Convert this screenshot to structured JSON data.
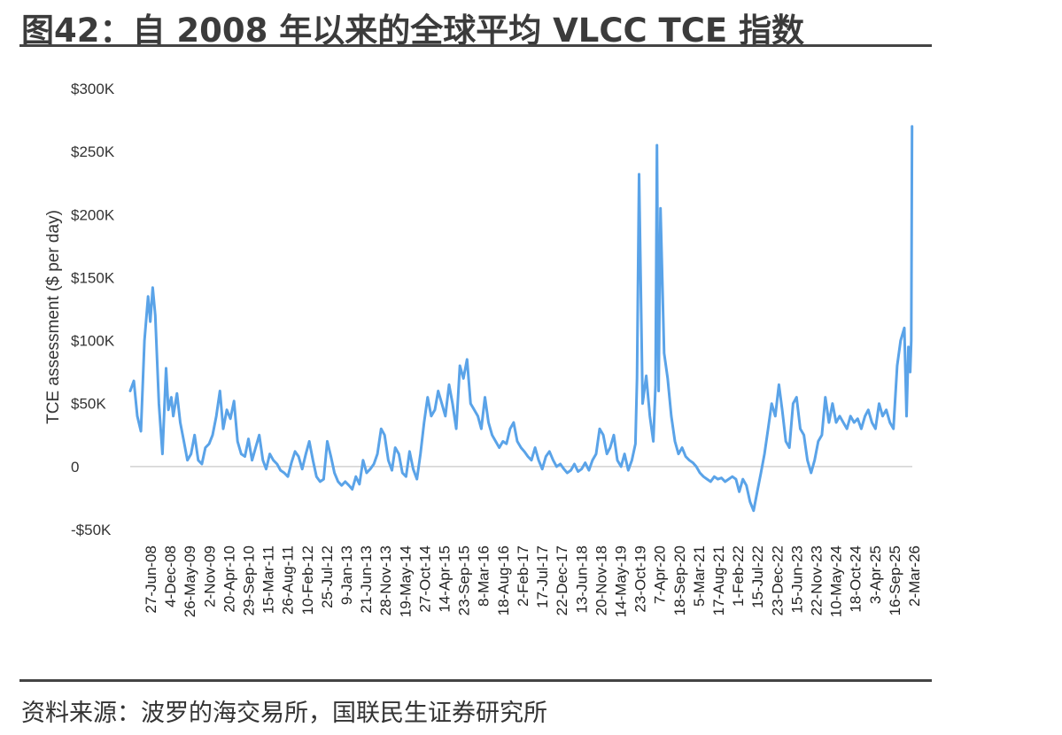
{
  "title": "图42：自 2008 年以来的全球平均 VLCC TCE 指数",
  "source": "资料来源：波罗的海交易所，国联民生证券研究所",
  "colors": {
    "line": "#5aa3e8",
    "zero_line": "#c8c8c8",
    "rule": "#444444"
  },
  "chart_data": {
    "type": "line",
    "title": "",
    "xlabel": "",
    "ylabel": "TCE assessment ($ per day)",
    "ylim": [
      -50000,
      300000
    ],
    "yticks": [
      -50000,
      0,
      50000,
      100000,
      150000,
      200000,
      250000,
      300000
    ],
    "ytick_labels": [
      "-$50K",
      "0",
      "$50K",
      "$100K",
      "$150K",
      "$200K",
      "$250K",
      "$300K"
    ],
    "xlim": [
      "2008-01-01",
      "2026-03-10"
    ],
    "xtick_labels": [
      "27-Jun-08",
      "4-Dec-08",
      "26-May-09",
      "2-Nov-09",
      "20-Apr-10",
      "29-Sep-10",
      "15-Mar-11",
      "26-Aug-11",
      "10-Feb-12",
      "25-Jul-12",
      "9-Jan-13",
      "21-Jun-13",
      "28-Nov-13",
      "19-May-14",
      "27-Oct-14",
      "14-Apr-15",
      "23-Sep-15",
      "8-Mar-16",
      "18-Aug-16",
      "2-Feb-17",
      "17-Jul-17",
      "22-Dec-17",
      "13-Jun-18",
      "20-Nov-18",
      "14-May-19",
      "23-Oct-19",
      "7-Apr-20",
      "18-Sep-20",
      "5-Mar-21",
      "17-Aug-21",
      "1-Feb-22",
      "15-Jul-22",
      "23-Dec-22",
      "15-Jun-23",
      "22-Nov-23",
      "10-May-24",
      "18-Oct-24",
      "3-Apr-25",
      "16-Sep-25",
      "2-Mar-26"
    ],
    "series": [
      {
        "color": "#5aa3e8",
        "x": [
          "2008-01-01",
          "2008-02-01",
          "2008-03-01",
          "2008-04-01",
          "2008-05-01",
          "2008-06-01",
          "2008-06-20",
          "2008-07-10",
          "2008-08-01",
          "2008-09-01",
          "2008-10-01",
          "2008-11-01",
          "2008-11-20",
          "2008-12-15",
          "2009-01-01",
          "2009-02-01",
          "2009-03-01",
          "2009-04-01",
          "2009-05-01",
          "2009-06-01",
          "2009-07-01",
          "2009-08-01",
          "2009-09-01",
          "2009-10-01",
          "2009-11-01",
          "2009-12-01",
          "2010-01-01",
          "2010-02-01",
          "2010-03-01",
          "2010-04-01",
          "2010-05-01",
          "2010-06-01",
          "2010-07-01",
          "2010-08-01",
          "2010-09-01",
          "2010-10-01",
          "2010-11-01",
          "2010-12-01",
          "2011-01-01",
          "2011-02-01",
          "2011-03-01",
          "2011-04-01",
          "2011-05-01",
          "2011-06-01",
          "2011-07-01",
          "2011-08-01",
          "2011-09-01",
          "2011-10-01",
          "2011-11-01",
          "2011-12-01",
          "2012-01-01",
          "2012-02-01",
          "2012-03-01",
          "2012-04-01",
          "2012-05-01",
          "2012-06-01",
          "2012-07-01",
          "2012-08-01",
          "2012-09-01",
          "2012-10-01",
          "2012-11-01",
          "2012-12-01",
          "2013-01-01",
          "2013-02-01",
          "2013-03-01",
          "2013-04-01",
          "2013-05-01",
          "2013-06-01",
          "2013-07-01",
          "2013-08-01",
          "2013-09-01",
          "2013-10-01",
          "2013-11-01",
          "2013-12-01",
          "2014-01-01",
          "2014-02-01",
          "2014-03-01",
          "2014-04-01",
          "2014-05-01",
          "2014-06-01",
          "2014-07-01",
          "2014-08-01",
          "2014-09-01",
          "2014-10-01",
          "2014-11-01",
          "2014-12-01",
          "2015-01-01",
          "2015-02-01",
          "2015-03-01",
          "2015-04-01",
          "2015-05-01",
          "2015-06-01",
          "2015-07-01",
          "2015-08-01",
          "2015-09-01",
          "2015-10-01",
          "2015-11-01",
          "2015-12-01",
          "2016-01-01",
          "2016-02-01",
          "2016-03-01",
          "2016-04-01",
          "2016-05-01",
          "2016-06-01",
          "2016-07-01",
          "2016-08-01",
          "2016-09-01",
          "2016-10-01",
          "2016-11-01",
          "2016-12-01",
          "2017-01-01",
          "2017-02-01",
          "2017-03-01",
          "2017-04-01",
          "2017-05-01",
          "2017-06-01",
          "2017-07-01",
          "2017-08-01",
          "2017-09-01",
          "2017-10-01",
          "2017-11-01",
          "2017-12-01",
          "2018-01-01",
          "2018-02-01",
          "2018-03-01",
          "2018-04-01",
          "2018-05-01",
          "2018-06-01",
          "2018-07-01",
          "2018-08-01",
          "2018-09-01",
          "2018-10-01",
          "2018-11-01",
          "2018-12-01",
          "2019-01-01",
          "2019-02-01",
          "2019-03-01",
          "2019-04-01",
          "2019-05-01",
          "2019-06-01",
          "2019-07-01",
          "2019-08-01",
          "2019-09-01",
          "2019-10-01",
          "2019-10-15",
          "2019-11-01",
          "2019-12-01",
          "2020-01-01",
          "2020-02-01",
          "2020-03-01",
          "2020-03-20",
          "2020-04-01",
          "2020-04-15",
          "2020-05-01",
          "2020-06-01",
          "2020-07-01",
          "2020-08-01",
          "2020-09-01",
          "2020-10-01",
          "2020-11-01",
          "2020-12-01",
          "2021-01-01",
          "2021-02-01",
          "2021-03-01",
          "2021-04-01",
          "2021-05-01",
          "2021-06-01",
          "2021-07-01",
          "2021-08-01",
          "2021-09-01",
          "2021-10-01",
          "2021-11-01",
          "2021-12-01",
          "2022-01-01",
          "2022-02-01",
          "2022-03-01",
          "2022-04-01",
          "2022-05-01",
          "2022-06-01",
          "2022-07-01",
          "2022-08-01",
          "2022-09-01",
          "2022-10-01",
          "2022-11-01",
          "2022-12-01",
          "2023-01-01",
          "2023-02-01",
          "2023-03-01",
          "2023-04-01",
          "2023-05-01",
          "2023-06-01",
          "2023-07-01",
          "2023-08-01",
          "2023-09-01",
          "2023-10-01",
          "2023-11-01",
          "2023-12-01",
          "2024-01-01",
          "2024-02-01",
          "2024-03-01",
          "2024-04-01",
          "2024-05-01",
          "2024-06-01",
          "2024-07-01",
          "2024-08-01",
          "2024-09-01",
          "2024-10-01",
          "2024-11-01",
          "2024-12-01",
          "2025-01-01",
          "2025-02-01",
          "2025-03-01",
          "2025-04-01",
          "2025-05-01",
          "2025-06-01",
          "2025-07-01",
          "2025-08-01",
          "2025-09-01",
          "2025-10-01",
          "2025-11-01",
          "2025-12-01",
          "2026-01-01",
          "2026-01-20",
          "2026-02-05",
          "2026-02-20",
          "2026-03-01",
          "2026-03-08"
        ],
        "y": [
          60000,
          68000,
          40000,
          28000,
          100000,
          135000,
          115000,
          142000,
          120000,
          50000,
          10000,
          78000,
          45000,
          55000,
          40000,
          58000,
          35000,
          20000,
          5000,
          10000,
          25000,
          5000,
          2000,
          15000,
          18000,
          25000,
          40000,
          60000,
          30000,
          45000,
          38000,
          52000,
          20000,
          10000,
          8000,
          22000,
          5000,
          15000,
          25000,
          5000,
          -2000,
          10000,
          5000,
          2000,
          -3000,
          -5000,
          -8000,
          3000,
          12000,
          8000,
          -2000,
          10000,
          20000,
          5000,
          -8000,
          -12000,
          -10000,
          20000,
          8000,
          -5000,
          -12000,
          -15000,
          -12000,
          -15000,
          -18000,
          -8000,
          -14000,
          5000,
          -5000,
          -2000,
          2000,
          10000,
          30000,
          25000,
          5000,
          -3000,
          15000,
          10000,
          -5000,
          -8000,
          12000,
          -2000,
          -10000,
          10000,
          35000,
          55000,
          40000,
          45000,
          60000,
          50000,
          40000,
          65000,
          50000,
          30000,
          80000,
          70000,
          85000,
          50000,
          45000,
          40000,
          30000,
          55000,
          35000,
          25000,
          20000,
          15000,
          20000,
          18000,
          30000,
          35000,
          20000,
          15000,
          12000,
          8000,
          5000,
          15000,
          5000,
          -2000,
          8000,
          12000,
          5000,
          0,
          2000,
          -2000,
          -5000,
          -3000,
          2000,
          -4000,
          -2000,
          3000,
          -3000,
          5000,
          10000,
          30000,
          25000,
          10000,
          15000,
          25000,
          5000,
          0,
          10000,
          -3000,
          5000,
          18000,
          70000,
          232000,
          50000,
          72000,
          40000,
          20000,
          65000,
          255000,
          60000,
          205000,
          90000,
          70000,
          40000,
          20000,
          10000,
          15000,
          8000,
          5000,
          3000,
          0,
          -5000,
          -8000,
          -10000,
          -12000,
          -8000,
          -10000,
          -9000,
          -12000,
          -10000,
          -8000,
          -10000,
          -20000,
          -10000,
          -15000,
          -28000,
          -35000,
          -20000,
          -5000,
          10000,
          30000,
          50000,
          40000,
          65000,
          45000,
          20000,
          15000,
          50000,
          55000,
          30000,
          25000,
          5000,
          -5000,
          5000,
          20000,
          25000,
          55000,
          35000,
          50000,
          35000,
          40000,
          35000,
          30000,
          40000,
          35000,
          38000,
          30000,
          40000,
          45000,
          35000,
          30000,
          50000,
          40000,
          45000,
          35000,
          30000,
          80000,
          100000,
          110000,
          40000,
          95000,
          75000,
          100000,
          270000
        ]
      }
    ]
  }
}
